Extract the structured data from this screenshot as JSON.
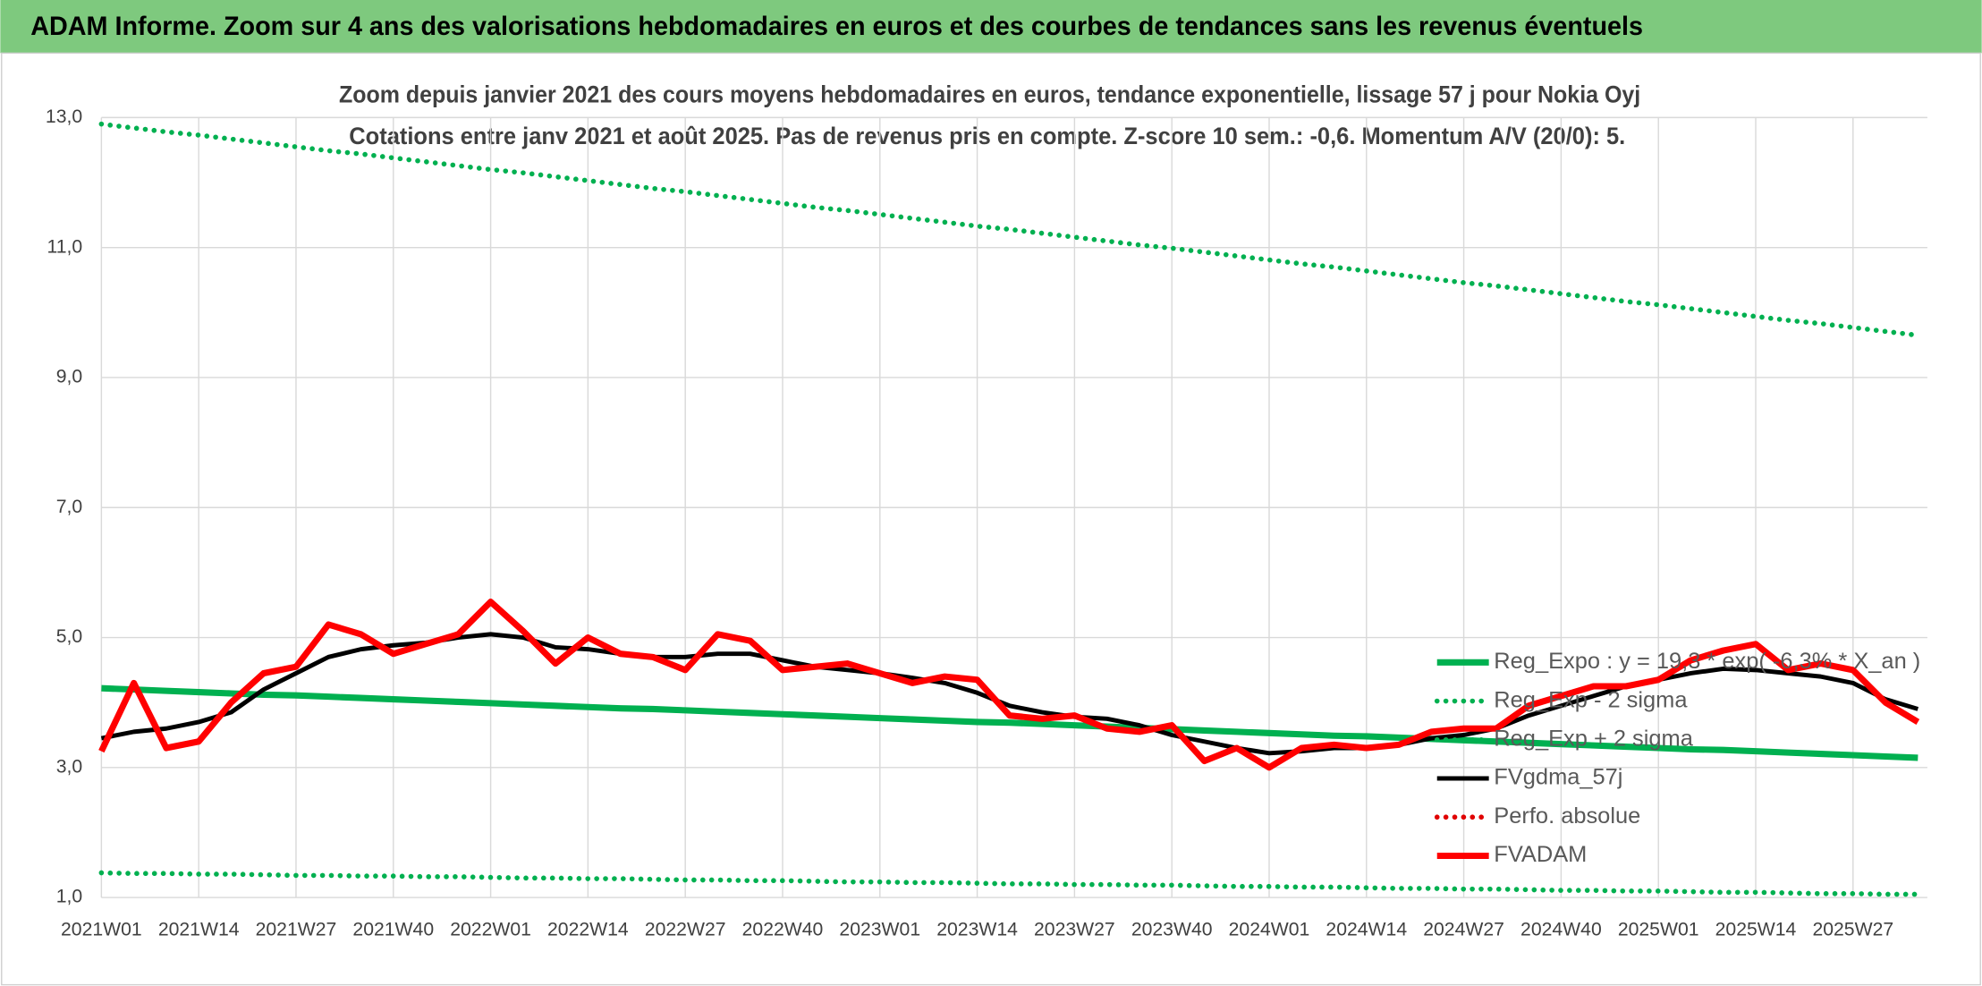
{
  "chart_data": {
    "type": "line",
    "title": "ADAM Informe. Zoom sur 4 ans des valorisations hebdomadaires en euros et des courbes de tendances sans les revenus éventuels",
    "subtitle": [
      "Zoom depuis janvier 2021 des cours moyens hebdomadaires en euros, tendance exponentielle, lissage 57 j pour Nokia Oyj",
      "Cotations entre janv 2021 et août 2025. Pas de revenus pris en compte. Z-score 10 sem.: -0,6. Momentum A/V (20/0): 5."
    ],
    "categories": [
      "2021W01",
      null,
      null,
      "2021W14",
      null,
      null,
      "2021W27",
      null,
      null,
      "2021W40",
      null,
      null,
      "2022W01",
      null,
      null,
      "2022W14",
      null,
      null,
      "2022W27",
      null,
      null,
      "2022W40",
      null,
      null,
      "2023W01",
      null,
      null,
      "2023W14",
      null,
      null,
      "2023W27",
      null,
      null,
      "2023W40",
      null,
      null,
      "2024W01",
      null,
      null,
      "2024W14",
      null,
      null,
      "2024W27",
      null,
      null,
      "2024W40",
      null,
      null,
      "2025W01",
      null,
      null,
      "2025W14",
      null,
      null,
      "2025W27",
      null,
      null
    ],
    "ylim": [
      1,
      13
    ],
    "yticks": [
      {
        "value": 1,
        "label": "1,0"
      },
      {
        "value": 3,
        "label": "3,0"
      },
      {
        "value": 5,
        "label": "5,0"
      },
      {
        "value": 7,
        "label": "7,0"
      },
      {
        "value": 9,
        "label": "9,0"
      },
      {
        "value": 11,
        "label": "11,0"
      },
      {
        "value": 13,
        "label": "13,0"
      }
    ],
    "grid": true,
    "legend": "right",
    "series": [
      {
        "name": "Reg_Expo : y = 19,3 * exp( -6,3% * X_an )",
        "color": "#00b050",
        "line_style": "solid",
        "values": [
          4.22,
          4.2,
          4.18,
          4.16,
          4.14,
          4.12,
          4.11,
          4.09,
          4.07,
          4.05,
          4.03,
          4.01,
          3.99,
          3.97,
          3.95,
          3.93,
          3.91,
          3.9,
          3.88,
          3.86,
          3.84,
          3.82,
          3.8,
          3.78,
          3.76,
          3.74,
          3.72,
          3.7,
          3.69,
          3.67,
          3.65,
          3.63,
          3.61,
          3.59,
          3.57,
          3.55,
          3.53,
          3.51,
          3.49,
          3.48,
          3.46,
          3.44,
          3.42,
          3.4,
          3.38,
          3.36,
          3.34,
          3.32,
          3.3,
          3.28,
          3.27,
          3.25,
          3.23,
          3.21,
          3.19,
          3.17,
          3.15
        ]
      },
      {
        "name": "Reg_Exp - 2 sigma",
        "color": "#00b050",
        "line_style": "dotted",
        "values": [
          1.38,
          1.37,
          1.37,
          1.36,
          1.36,
          1.35,
          1.34,
          1.34,
          1.33,
          1.33,
          1.32,
          1.32,
          1.31,
          1.3,
          1.3,
          1.29,
          1.29,
          1.28,
          1.27,
          1.27,
          1.26,
          1.26,
          1.25,
          1.24,
          1.24,
          1.23,
          1.23,
          1.22,
          1.21,
          1.21,
          1.2,
          1.2,
          1.19,
          1.19,
          1.18,
          1.17,
          1.17,
          1.16,
          1.16,
          1.15,
          1.14,
          1.14,
          1.13,
          1.13,
          1.12,
          1.11,
          1.11,
          1.1,
          1.1,
          1.09,
          1.08,
          1.08,
          1.07,
          1.06,
          1.06,
          1.05,
          1.05
        ]
      },
      {
        "name": "Reg_Exp + 2 sigma",
        "color": "#00b050",
        "line_style": "dotted",
        "values": [
          12.9,
          12.84,
          12.78,
          12.73,
          12.67,
          12.61,
          12.55,
          12.49,
          12.44,
          12.38,
          12.32,
          12.26,
          12.2,
          12.15,
          12.09,
          12.03,
          11.97,
          11.91,
          11.86,
          11.8,
          11.74,
          11.68,
          11.62,
          11.57,
          11.51,
          11.45,
          11.39,
          11.33,
          11.28,
          11.22,
          11.16,
          11.1,
          11.04,
          10.99,
          10.93,
          10.87,
          10.81,
          10.75,
          10.7,
          10.64,
          10.58,
          10.52,
          10.46,
          10.41,
          10.35,
          10.29,
          10.23,
          10.17,
          10.12,
          10.06,
          10.0,
          9.94,
          9.88,
          9.83,
          9.77,
          9.71,
          9.65
        ]
      },
      {
        "name": "FVgdma_57j",
        "color": "#000000",
        "line_style": "solid",
        "values": [
          3.45,
          3.55,
          3.6,
          3.7,
          3.85,
          4.2,
          4.45,
          4.7,
          4.82,
          4.88,
          4.92,
          5.0,
          5.05,
          5.0,
          4.85,
          4.82,
          4.75,
          4.7,
          4.7,
          4.75,
          4.75,
          4.65,
          4.55,
          4.5,
          4.45,
          4.38,
          4.3,
          4.15,
          3.95,
          3.85,
          3.78,
          3.75,
          3.65,
          3.5,
          3.4,
          3.3,
          3.22,
          3.25,
          3.3,
          3.3,
          3.35,
          3.45,
          3.5,
          3.6,
          3.8,
          3.95,
          4.1,
          4.25,
          4.35,
          4.45,
          4.52,
          4.5,
          4.45,
          4.4,
          4.3,
          4.05,
          3.9
        ]
      },
      {
        "name": "Perfo. absolue",
        "color": "#e00000",
        "line_style": "dotted",
        "values": [
          null,
          null,
          null,
          null,
          null,
          null,
          null,
          null,
          null,
          null,
          null,
          null,
          null,
          null,
          null,
          null,
          null,
          null,
          null,
          null,
          null,
          null,
          null,
          null,
          null,
          null,
          null,
          null,
          null,
          null,
          null,
          null,
          null,
          null,
          null,
          null,
          null,
          null,
          null,
          null,
          null,
          null,
          null,
          null,
          null,
          null,
          null,
          null,
          null,
          null,
          null,
          null,
          null,
          null,
          null,
          null,
          null
        ]
      },
      {
        "name": "FVADAM",
        "color": "#ff0000",
        "line_style": "solid",
        "values": [
          3.25,
          4.3,
          3.3,
          3.4,
          4.0,
          4.45,
          4.55,
          5.2,
          5.05,
          4.75,
          4.9,
          5.05,
          5.55,
          5.1,
          4.6,
          5.0,
          4.75,
          4.7,
          4.5,
          5.05,
          4.95,
          4.5,
          4.55,
          4.6,
          4.45,
          4.3,
          4.4,
          4.35,
          3.8,
          3.75,
          3.8,
          3.6,
          3.55,
          3.65,
          3.1,
          3.3,
          3.0,
          3.3,
          3.35,
          3.3,
          3.35,
          3.55,
          3.6,
          3.6,
          3.95,
          4.1,
          4.25,
          4.25,
          4.35,
          4.65,
          4.8,
          4.9,
          4.5,
          4.6,
          4.5,
          4.0,
          3.7
        ]
      }
    ]
  }
}
